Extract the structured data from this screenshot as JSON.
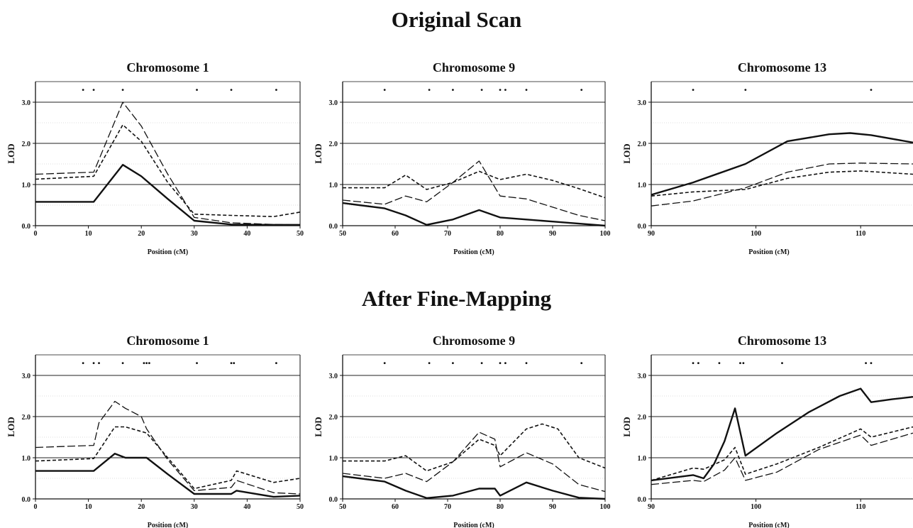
{
  "sections": [
    {
      "title": "Original Scan"
    },
    {
      "title": "After Fine-Mapping"
    }
  ],
  "chart_data": [
    {
      "type": "line",
      "section": "Original Scan",
      "title": "Chromosome 1",
      "xlabel": "Position (cM)",
      "ylabel": "LOD",
      "xlim": [
        0,
        50
      ],
      "ylim": [
        0,
        3.5
      ],
      "xticks": [
        0,
        10,
        20,
        30,
        40,
        50
      ],
      "yticks": [
        0.0,
        1.0,
        2.0,
        3.0
      ],
      "hlines": [
        1.0,
        2.0,
        3.0
      ],
      "markers": [
        9,
        11,
        16.5,
        30.5,
        37,
        45.5
      ],
      "series": [
        {
          "style": "solid",
          "points": [
            [
              0,
              0.58
            ],
            [
              11,
              0.58
            ],
            [
              16.5,
              1.48
            ],
            [
              20,
              1.2
            ],
            [
              25,
              0.65
            ],
            [
              30,
              0.12
            ],
            [
              37,
              0.03
            ],
            [
              45,
              0.02
            ],
            [
              50,
              0.02
            ]
          ]
        },
        {
          "style": "short-dash",
          "points": [
            [
              0,
              1.13
            ],
            [
              11,
              1.2
            ],
            [
              16.5,
              2.45
            ],
            [
              20,
              2.05
            ],
            [
              25,
              1.05
            ],
            [
              30,
              0.28
            ],
            [
              37,
              0.25
            ],
            [
              45,
              0.22
            ],
            [
              50,
              0.33
            ]
          ]
        },
        {
          "style": "long-dash",
          "points": [
            [
              0,
              1.25
            ],
            [
              11,
              1.3
            ],
            [
              16.5,
              3.0
            ],
            [
              20,
              2.42
            ],
            [
              25,
              1.25
            ],
            [
              30,
              0.2
            ],
            [
              37,
              0.07
            ],
            [
              45,
              0.03
            ],
            [
              50,
              0.02
            ]
          ]
        }
      ]
    },
    {
      "type": "line",
      "section": "Original Scan",
      "title": "Chromosome 9",
      "xlabel": "Position (cM)",
      "ylabel": "LOD",
      "xlim": [
        50,
        100
      ],
      "ylim": [
        0,
        3.5
      ],
      "xticks": [
        50,
        60,
        70,
        80,
        90,
        100
      ],
      "yticks": [
        0.0,
        1.0,
        2.0,
        3.0
      ],
      "hlines": [
        1.0,
        2.0,
        3.0
      ],
      "markers": [
        58,
        66.5,
        71,
        76.5,
        80,
        81,
        85,
        95.5
      ],
      "series": [
        {
          "style": "solid",
          "points": [
            [
              50,
              0.55
            ],
            [
              58,
              0.42
            ],
            [
              62,
              0.25
            ],
            [
              66,
              0.02
            ],
            [
              71,
              0.15
            ],
            [
              76,
              0.38
            ],
            [
              80,
              0.2
            ],
            [
              85,
              0.15
            ],
            [
              90,
              0.1
            ],
            [
              95,
              0.05
            ],
            [
              100,
              0.0
            ]
          ]
        },
        {
          "style": "short-dash",
          "points": [
            [
              50,
              0.92
            ],
            [
              58,
              0.92
            ],
            [
              62,
              1.23
            ],
            [
              66,
              0.88
            ],
            [
              71,
              1.05
            ],
            [
              76,
              1.32
            ],
            [
              80,
              1.12
            ],
            [
              85,
              1.25
            ],
            [
              90,
              1.1
            ],
            [
              95,
              0.9
            ],
            [
              100,
              0.68
            ]
          ]
        },
        {
          "style": "long-dash",
          "points": [
            [
              50,
              0.62
            ],
            [
              58,
              0.52
            ],
            [
              62,
              0.72
            ],
            [
              66,
              0.58
            ],
            [
              71,
              1.05
            ],
            [
              76,
              1.57
            ],
            [
              80,
              0.72
            ],
            [
              85,
              0.65
            ],
            [
              90,
              0.45
            ],
            [
              95,
              0.25
            ],
            [
              100,
              0.12
            ]
          ]
        }
      ]
    },
    {
      "type": "line",
      "section": "Original Scan",
      "title": "Chromosome 13",
      "xlabel": "Position (cM)",
      "ylabel": "LOD",
      "xlim": [
        90,
        115
      ],
      "ylim": [
        0,
        3.5
      ],
      "xticks": [
        90,
        100,
        110
      ],
      "yticks": [
        0.0,
        1.0,
        2.0,
        3.0
      ],
      "hlines": [
        1.0,
        2.0,
        3.0
      ],
      "markers": [
        94,
        99,
        111
      ],
      "series": [
        {
          "style": "solid",
          "points": [
            [
              90,
              0.75
            ],
            [
              94,
              1.05
            ],
            [
              99,
              1.5
            ],
            [
              103,
              2.05
            ],
            [
              107,
              2.22
            ],
            [
              109,
              2.25
            ],
            [
              111,
              2.2
            ],
            [
              115,
              2.02
            ]
          ]
        },
        {
          "style": "short-dash",
          "points": [
            [
              90,
              0.72
            ],
            [
              94,
              0.82
            ],
            [
              99,
              0.88
            ],
            [
              103,
              1.15
            ],
            [
              107,
              1.3
            ],
            [
              110,
              1.33
            ],
            [
              115,
              1.25
            ]
          ]
        },
        {
          "style": "long-dash",
          "points": [
            [
              90,
              0.48
            ],
            [
              94,
              0.6
            ],
            [
              99,
              0.92
            ],
            [
              103,
              1.3
            ],
            [
              107,
              1.5
            ],
            [
              110,
              1.52
            ],
            [
              115,
              1.5
            ]
          ]
        }
      ]
    },
    {
      "type": "line",
      "section": "After Fine-Mapping",
      "title": "Chromosome 1",
      "xlabel": "Position (cM)",
      "ylabel": "LOD",
      "xlim": [
        0,
        50
      ],
      "ylim": [
        0,
        3.5
      ],
      "xticks": [
        0,
        10,
        20,
        30,
        40,
        50
      ],
      "yticks": [
        0.0,
        1.0,
        2.0,
        3.0
      ],
      "hlines": [
        1.0,
        2.0,
        3.0
      ],
      "markers": [
        9,
        11,
        12,
        16.5,
        20.5,
        21,
        21.5,
        30.5,
        37,
        37.5,
        45.5
      ],
      "series": [
        {
          "style": "solid",
          "points": [
            [
              0,
              0.68
            ],
            [
              11,
              0.68
            ],
            [
              15,
              1.1
            ],
            [
              17,
              1.0
            ],
            [
              21,
              1.0
            ],
            [
              25,
              0.6
            ],
            [
              30,
              0.12
            ],
            [
              37,
              0.12
            ],
            [
              38,
              0.2
            ],
            [
              45,
              0.05
            ],
            [
              50,
              0.08
            ]
          ]
        },
        {
          "style": "short-dash",
          "points": [
            [
              0,
              0.92
            ],
            [
              11,
              0.98
            ],
            [
              15,
              1.75
            ],
            [
              17,
              1.75
            ],
            [
              21,
              1.6
            ],
            [
              25,
              1.0
            ],
            [
              30,
              0.25
            ],
            [
              37,
              0.45
            ],
            [
              38,
              0.68
            ],
            [
              45,
              0.4
            ],
            [
              50,
              0.5
            ]
          ]
        },
        {
          "style": "long-dash",
          "points": [
            [
              0,
              1.25
            ],
            [
              11,
              1.3
            ],
            [
              12,
              1.85
            ],
            [
              15,
              2.37
            ],
            [
              17,
              2.2
            ],
            [
              20,
              2.0
            ],
            [
              21,
              1.7
            ],
            [
              25,
              0.95
            ],
            [
              30,
              0.2
            ],
            [
              37,
              0.28
            ],
            [
              38,
              0.45
            ],
            [
              45,
              0.15
            ],
            [
              50,
              0.12
            ]
          ]
        }
      ]
    },
    {
      "type": "line",
      "section": "After Fine-Mapping",
      "title": "Chromosome 9",
      "xlabel": "Position (cM)",
      "ylabel": "LOD",
      "xlim": [
        50,
        100
      ],
      "ylim": [
        0,
        3.5
      ],
      "xticks": [
        50,
        60,
        70,
        80,
        90,
        100
      ],
      "yticks": [
        0.0,
        1.0,
        2.0,
        3.0
      ],
      "hlines": [
        1.0,
        2.0,
        3.0
      ],
      "markers": [
        58,
        66.5,
        71,
        76.5,
        80,
        81,
        85,
        95.5
      ],
      "series": [
        {
          "style": "solid",
          "points": [
            [
              50,
              0.55
            ],
            [
              58,
              0.42
            ],
            [
              62,
              0.2
            ],
            [
              66,
              0.02
            ],
            [
              71,
              0.08
            ],
            [
              76,
              0.25
            ],
            [
              79,
              0.25
            ],
            [
              80,
              0.08
            ],
            [
              85,
              0.4
            ],
            [
              90,
              0.2
            ],
            [
              95,
              0.03
            ],
            [
              100,
              0.0
            ]
          ]
        },
        {
          "style": "short-dash",
          "points": [
            [
              50,
              0.92
            ],
            [
              58,
              0.92
            ],
            [
              62,
              1.05
            ],
            [
              66,
              0.68
            ],
            [
              71,
              0.9
            ],
            [
              76,
              1.45
            ],
            [
              79,
              1.3
            ],
            [
              80,
              1.05
            ],
            [
              85,
              1.7
            ],
            [
              88,
              1.82
            ],
            [
              91,
              1.7
            ],
            [
              95,
              1.0
            ],
            [
              100,
              0.75
            ]
          ]
        },
        {
          "style": "long-dash",
          "points": [
            [
              50,
              0.62
            ],
            [
              58,
              0.5
            ],
            [
              62,
              0.62
            ],
            [
              66,
              0.42
            ],
            [
              71,
              0.9
            ],
            [
              76,
              1.62
            ],
            [
              79,
              1.45
            ],
            [
              80,
              0.78
            ],
            [
              85,
              1.12
            ],
            [
              90,
              0.85
            ],
            [
              95,
              0.35
            ],
            [
              100,
              0.18
            ]
          ]
        }
      ]
    },
    {
      "type": "line",
      "section": "After Fine-Mapping",
      "title": "Chromosome 13",
      "xlabel": "Position (cM)",
      "ylabel": "LOD",
      "xlim": [
        90,
        115
      ],
      "ylim": [
        0,
        3.5
      ],
      "xticks": [
        90,
        100,
        110
      ],
      "yticks": [
        0.0,
        1.0,
        2.0,
        3.0
      ],
      "hlines": [
        1.0,
        2.0,
        3.0
      ],
      "markers": [
        94,
        94.5,
        96.5,
        98.5,
        98.8,
        102.5,
        110.5,
        111
      ],
      "series": [
        {
          "style": "solid",
          "points": [
            [
              90,
              0.45
            ],
            [
              94,
              0.58
            ],
            [
              95,
              0.5
            ],
            [
              96,
              0.85
            ],
            [
              97,
              1.4
            ],
            [
              98,
              2.2
            ],
            [
              99,
              1.05
            ],
            [
              102,
              1.6
            ],
            [
              105,
              2.1
            ],
            [
              108,
              2.5
            ],
            [
              110,
              2.68
            ],
            [
              111,
              2.35
            ],
            [
              113,
              2.42
            ],
            [
              115,
              2.48
            ]
          ]
        },
        {
          "style": "short-dash",
          "points": [
            [
              90,
              0.45
            ],
            [
              94,
              0.75
            ],
            [
              95,
              0.72
            ],
            [
              97,
              0.95
            ],
            [
              98,
              1.25
            ],
            [
              99,
              0.6
            ],
            [
              102,
              0.85
            ],
            [
              106,
              1.25
            ],
            [
              110,
              1.7
            ],
            [
              111,
              1.5
            ],
            [
              115,
              1.75
            ]
          ]
        },
        {
          "style": "long-dash",
          "points": [
            [
              90,
              0.35
            ],
            [
              94,
              0.45
            ],
            [
              95,
              0.42
            ],
            [
              97,
              0.7
            ],
            [
              98,
              1.0
            ],
            [
              99,
              0.45
            ],
            [
              102,
              0.65
            ],
            [
              106,
              1.2
            ],
            [
              110,
              1.55
            ],
            [
              111,
              1.3
            ],
            [
              115,
              1.6
            ]
          ]
        }
      ]
    }
  ]
}
